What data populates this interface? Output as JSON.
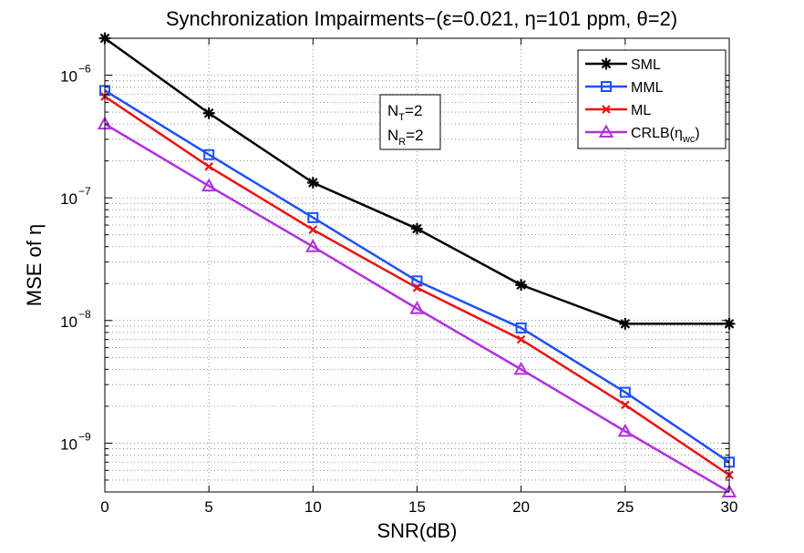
{
  "chart_data": {
    "type": "line",
    "title": "Synchronization Impairments−(ε=0.021, η=101 ppm, θ=2)",
    "xlabel": "SNR(dB)",
    "ylabel": "MSE of η",
    "y_scale": "log",
    "xlim": [
      0,
      30
    ],
    "ylim": [
      4e-10,
      2e-06
    ],
    "grid": true,
    "x_ticks": [
      0,
      5,
      10,
      15,
      20,
      25,
      30
    ],
    "x_tick_labels": [
      "0",
      "5",
      "10",
      "15",
      "20",
      "25",
      "30"
    ],
    "y_ticks": [
      {
        "value": 1e-09,
        "mantissa": "10",
        "exponent": "−9"
      },
      {
        "value": 1e-08,
        "mantissa": "10",
        "exponent": "−8"
      },
      {
        "value": 1e-07,
        "mantissa": "10",
        "exponent": "−7"
      },
      {
        "value": 1e-06,
        "mantissa": "10",
        "exponent": "−6"
      }
    ],
    "x": [
      0,
      5,
      10,
      15,
      20,
      25,
      30
    ],
    "series": [
      {
        "name": "SML",
        "color": "#000000",
        "marker": "asterisk",
        "values": [
          2e-06,
          4.9e-07,
          1.33e-07,
          5.6e-08,
          1.95e-08,
          9.4e-09,
          9.4e-09
        ]
      },
      {
        "name": "MML",
        "color": "#1f4fff",
        "marker": "square",
        "values": [
          7.5e-07,
          2.25e-07,
          6.9e-08,
          2.1e-08,
          8.7e-09,
          2.6e-09,
          7e-10
        ]
      },
      {
        "name": "ML",
        "color": "#ee1111",
        "marker": "x",
        "values": [
          6.7e-07,
          1.8e-07,
          5.5e-08,
          1.85e-08,
          7e-09,
          2.05e-09,
          5.5e-10
        ]
      },
      {
        "name": "CRLB",
        "legend_sub": "wc",
        "color": "#b030e0",
        "marker": "triangle",
        "values": [
          4e-07,
          1.25e-07,
          4e-08,
          1.25e-08,
          4e-09,
          1.25e-09,
          4e-10
        ]
      }
    ],
    "legend_location": "top-right",
    "annotation": {
      "line1_main": "N",
      "line1_sub": "T",
      "line1_rest": "=2",
      "line2_main": "N",
      "line2_sub": "R",
      "line2_rest": "=2"
    }
  }
}
